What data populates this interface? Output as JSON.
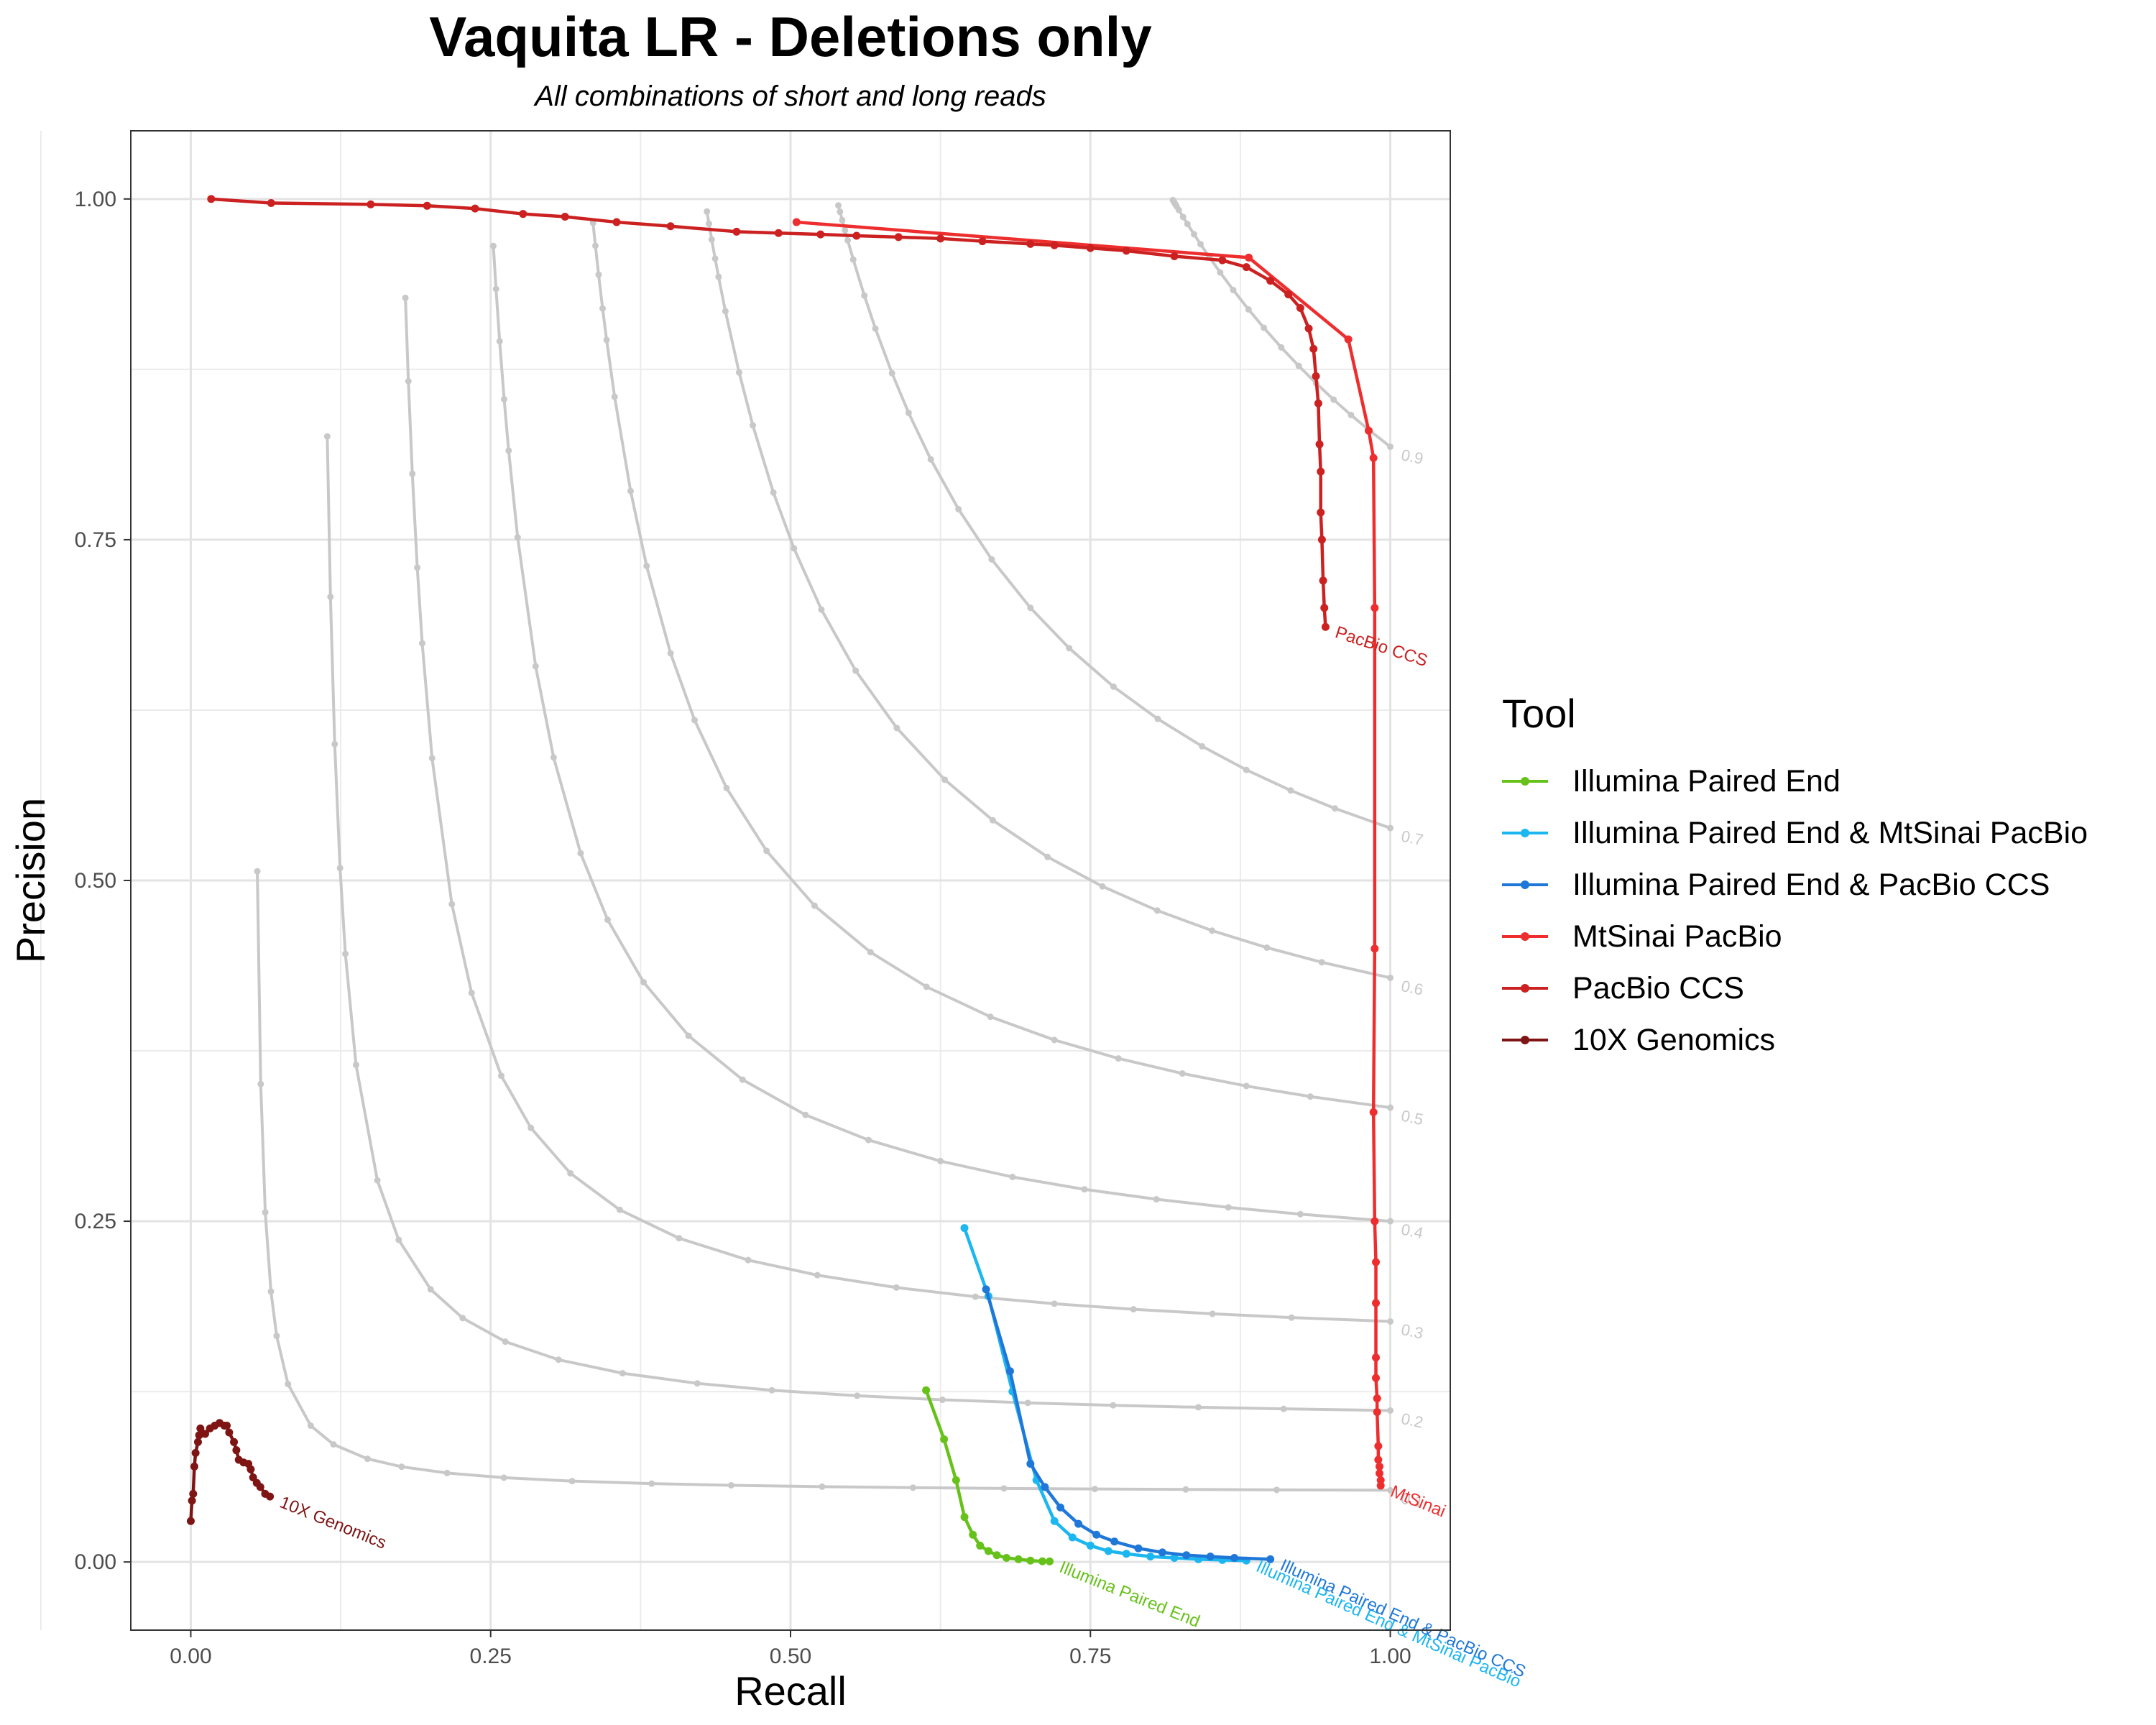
{
  "chart_data": {
    "type": "line",
    "title": "Vaquita LR - Deletions only",
    "subtitle": "All combinations of short and long reads",
    "xlabel": "Recall",
    "ylabel": "Precision",
    "xlim": [
      -0.05,
      1.05
    ],
    "ylim": [
      -0.05,
      1.05
    ],
    "x_ticks": [
      "0.00",
      "0.25",
      "0.50",
      "0.75",
      "1.00"
    ],
    "y_ticks": [
      "0.00",
      "0.25",
      "0.50",
      "0.75",
      "1.00"
    ],
    "grid": true,
    "legend": {
      "title": "Tool",
      "position": "right"
    },
    "f_score_contours": [
      {
        "label": "0.1",
        "value": 0.1
      },
      {
        "label": "0.2",
        "value": 0.2
      },
      {
        "label": "0.3",
        "value": 0.3
      },
      {
        "label": "0.4",
        "value": 0.4
      },
      {
        "label": "0.5",
        "value": 0.5
      },
      {
        "label": "0.6",
        "value": 0.6
      },
      {
        "label": "0.7",
        "value": 0.7
      },
      {
        "label": "0.9",
        "value": 0.9
      }
    ],
    "series": [
      {
        "name": "Illumina Paired End",
        "end_label": "Illumina Paired End",
        "color": "#66c21a",
        "points": [
          [
            0.613,
            0.126
          ],
          [
            0.628,
            0.09
          ],
          [
            0.638,
            0.06
          ],
          [
            0.645,
            0.033
          ],
          [
            0.652,
            0.02
          ],
          [
            0.658,
            0.012
          ],
          [
            0.665,
            0.008
          ],
          [
            0.672,
            0.005
          ],
          [
            0.68,
            0.003
          ],
          [
            0.69,
            0.002
          ],
          [
            0.7,
            0.001
          ],
          [
            0.71,
            0.0005
          ],
          [
            0.716,
            0.0004
          ]
        ]
      },
      {
        "name": "Illumina Paired End & MtSinai PacBio",
        "end_label": "Illumina Paired End & MtSinai PacBio",
        "color": "#1cb6f0",
        "points": [
          [
            0.645,
            0.245
          ],
          [
            0.665,
            0.195
          ],
          [
            0.685,
            0.125
          ],
          [
            0.705,
            0.06
          ],
          [
            0.72,
            0.03
          ],
          [
            0.735,
            0.018
          ],
          [
            0.75,
            0.012
          ],
          [
            0.765,
            0.008
          ],
          [
            0.78,
            0.006
          ],
          [
            0.8,
            0.004
          ],
          [
            0.82,
            0.003
          ],
          [
            0.84,
            0.002
          ],
          [
            0.86,
            0.0015
          ],
          [
            0.88,
            0.001
          ]
        ]
      },
      {
        "name": "Illumina Paired End & PacBio CCS",
        "end_label": "Illumina Paired End & PacBio CCS",
        "color": "#1f78d8",
        "points": [
          [
            0.663,
            0.2
          ],
          [
            0.683,
            0.14
          ],
          [
            0.7,
            0.072
          ],
          [
            0.712,
            0.055
          ],
          [
            0.725,
            0.04
          ],
          [
            0.74,
            0.028
          ],
          [
            0.755,
            0.02
          ],
          [
            0.77,
            0.015
          ],
          [
            0.79,
            0.01
          ],
          [
            0.81,
            0.007
          ],
          [
            0.83,
            0.005
          ],
          [
            0.85,
            0.004
          ],
          [
            0.87,
            0.003
          ],
          [
            0.9,
            0.002
          ]
        ]
      },
      {
        "name": "MtSinai PacBio",
        "end_label": "MtSinai",
        "color": "#ee2e2e",
        "points": [
          [
            0.505,
            0.983
          ],
          [
            0.882,
            0.957
          ],
          [
            0.965,
            0.897
          ],
          [
            0.982,
            0.83
          ],
          [
            0.986,
            0.81
          ],
          [
            0.987,
            0.7
          ],
          [
            0.987,
            0.45
          ],
          [
            0.986,
            0.33
          ],
          [
            0.987,
            0.25
          ],
          [
            0.988,
            0.22
          ],
          [
            0.988,
            0.19
          ],
          [
            0.988,
            0.15
          ],
          [
            0.988,
            0.135
          ],
          [
            0.989,
            0.12
          ],
          [
            0.989,
            0.11
          ],
          [
            0.99,
            0.085
          ],
          [
            0.99,
            0.075
          ],
          [
            0.991,
            0.07
          ],
          [
            0.991,
            0.065
          ],
          [
            0.992,
            0.06
          ],
          [
            0.992,
            0.056
          ]
        ]
      },
      {
        "name": "PacBio CCS",
        "end_label": "PacBio CCS",
        "color": "#cb2121",
        "points": [
          [
            0.017,
            1.0
          ],
          [
            0.067,
            0.997
          ],
          [
            0.15,
            0.996
          ],
          [
            0.197,
            0.995
          ],
          [
            0.237,
            0.993
          ],
          [
            0.277,
            0.989
          ],
          [
            0.312,
            0.987
          ],
          [
            0.355,
            0.983
          ],
          [
            0.4,
            0.98
          ],
          [
            0.455,
            0.976
          ],
          [
            0.49,
            0.975
          ],
          [
            0.525,
            0.974
          ],
          [
            0.555,
            0.973
          ],
          [
            0.59,
            0.972
          ],
          [
            0.625,
            0.971
          ],
          [
            0.66,
            0.969
          ],
          [
            0.7,
            0.967
          ],
          [
            0.72,
            0.966
          ],
          [
            0.75,
            0.964
          ],
          [
            0.78,
            0.962
          ],
          [
            0.82,
            0.958
          ],
          [
            0.86,
            0.955
          ],
          [
            0.88,
            0.95
          ],
          [
            0.9,
            0.94
          ],
          [
            0.915,
            0.93
          ],
          [
            0.925,
            0.92
          ],
          [
            0.932,
            0.905
          ],
          [
            0.936,
            0.89
          ],
          [
            0.938,
            0.87
          ],
          [
            0.94,
            0.85
          ],
          [
            0.941,
            0.82
          ],
          [
            0.942,
            0.8
          ],
          [
            0.942,
            0.77
          ],
          [
            0.943,
            0.75
          ],
          [
            0.944,
            0.72
          ],
          [
            0.945,
            0.7
          ],
          [
            0.946,
            0.686
          ]
        ]
      },
      {
        "name": "10X Genomics",
        "end_label": "10X Genomics",
        "color": "#7f1414",
        "points": [
          [
            0.0,
            0.03
          ],
          [
            0.001,
            0.045
          ],
          [
            0.002,
            0.05
          ],
          [
            0.003,
            0.07
          ],
          [
            0.004,
            0.08
          ],
          [
            0.006,
            0.088
          ],
          [
            0.007,
            0.093
          ],
          [
            0.008,
            0.098
          ],
          [
            0.012,
            0.094
          ],
          [
            0.016,
            0.098
          ],
          [
            0.02,
            0.1
          ],
          [
            0.024,
            0.102
          ],
          [
            0.028,
            0.1
          ],
          [
            0.03,
            0.1
          ],
          [
            0.032,
            0.095
          ],
          [
            0.036,
            0.088
          ],
          [
            0.038,
            0.082
          ],
          [
            0.04,
            0.075
          ],
          [
            0.044,
            0.073
          ],
          [
            0.048,
            0.072
          ],
          [
            0.05,
            0.068
          ],
          [
            0.052,
            0.062
          ],
          [
            0.055,
            0.058
          ],
          [
            0.058,
            0.055
          ],
          [
            0.062,
            0.05
          ],
          [
            0.066,
            0.048
          ]
        ]
      }
    ]
  }
}
